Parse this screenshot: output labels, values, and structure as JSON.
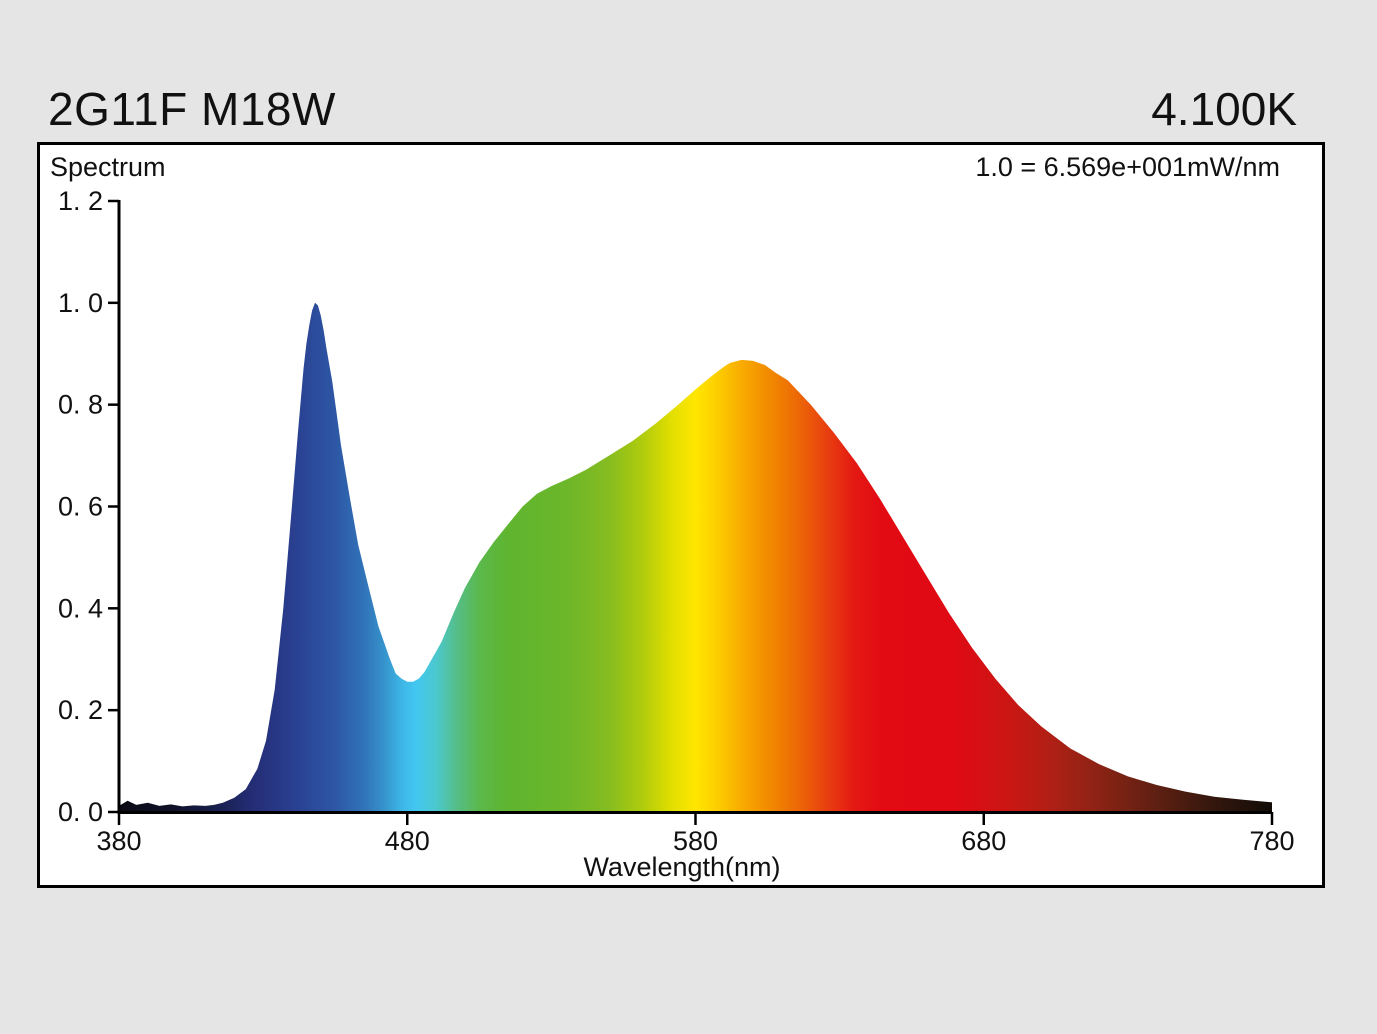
{
  "header": {
    "title_left": "2G11F M18W",
    "title_right": "4.100K"
  },
  "chart": {
    "label": "Spectrum",
    "scale_note": "1.0 = 6.569e+001mW/nm"
  },
  "colors": {
    "page_background": "#e5e5e5",
    "frame_background": "#ffffff",
    "frame_border": "#000000",
    "axis": "#000000",
    "text": "#111111"
  },
  "chart_data": {
    "type": "area",
    "title": "Spectrum",
    "subtitle": "1.0 = 6.569e+001mW/nm",
    "xlabel": "Wavelength(nm)",
    "ylabel": "",
    "xlim": [
      380,
      780
    ],
    "ylim": [
      0.0,
      1.2
    ],
    "grid": false,
    "legend": "none",
    "x_tick_values": [
      380,
      480,
      580,
      680,
      780
    ],
    "x_tick_labels": [
      "380",
      "480",
      "580",
      "680",
      "780"
    ],
    "y_tick_values": [
      0.0,
      0.2,
      0.4,
      0.6,
      0.8,
      1.0,
      1.2
    ],
    "y_tick_labels": [
      "0. 0",
      "0. 2",
      "0. 4",
      "0. 6",
      "0. 8",
      "1. 0",
      "1. 2"
    ],
    "fill_style": "wavelength-rainbow-gradient",
    "points": [
      [
        380,
        0.012
      ],
      [
        383,
        0.022
      ],
      [
        386,
        0.014
      ],
      [
        390,
        0.018
      ],
      [
        394,
        0.012
      ],
      [
        398,
        0.015
      ],
      [
        402,
        0.011
      ],
      [
        406,
        0.013
      ],
      [
        410,
        0.012
      ],
      [
        413,
        0.014
      ],
      [
        416,
        0.018
      ],
      [
        420,
        0.028
      ],
      [
        424,
        0.045
      ],
      [
        428,
        0.085
      ],
      [
        431,
        0.14
      ],
      [
        434,
        0.24
      ],
      [
        437,
        0.4
      ],
      [
        440,
        0.6
      ],
      [
        442,
        0.74
      ],
      [
        444,
        0.87
      ],
      [
        445,
        0.92
      ],
      [
        446,
        0.955
      ],
      [
        447,
        0.985
      ],
      [
        448,
        1.0
      ],
      [
        449,
        0.995
      ],
      [
        450,
        0.975
      ],
      [
        451,
        0.945
      ],
      [
        452,
        0.91
      ],
      [
        454,
        0.845
      ],
      [
        457,
        0.72
      ],
      [
        460,
        0.62
      ],
      [
        463,
        0.525
      ],
      [
        466,
        0.455
      ],
      [
        470,
        0.365
      ],
      [
        474,
        0.3
      ],
      [
        476,
        0.272
      ],
      [
        478,
        0.262
      ],
      [
        480,
        0.256
      ],
      [
        482,
        0.256
      ],
      [
        484,
        0.262
      ],
      [
        486,
        0.275
      ],
      [
        488,
        0.295
      ],
      [
        492,
        0.335
      ],
      [
        496,
        0.39
      ],
      [
        500,
        0.44
      ],
      [
        505,
        0.49
      ],
      [
        510,
        0.53
      ],
      [
        515,
        0.565
      ],
      [
        520,
        0.6
      ],
      [
        525,
        0.625
      ],
      [
        530,
        0.64
      ],
      [
        536,
        0.655
      ],
      [
        542,
        0.672
      ],
      [
        550,
        0.7
      ],
      [
        558,
        0.728
      ],
      [
        566,
        0.762
      ],
      [
        574,
        0.8
      ],
      [
        580,
        0.83
      ],
      [
        586,
        0.858
      ],
      [
        590,
        0.875
      ],
      [
        592,
        0.882
      ],
      [
        596,
        0.888
      ],
      [
        600,
        0.886
      ],
      [
        604,
        0.878
      ],
      [
        608,
        0.862
      ],
      [
        612,
        0.848
      ],
      [
        620,
        0.8
      ],
      [
        628,
        0.745
      ],
      [
        636,
        0.685
      ],
      [
        644,
        0.615
      ],
      [
        652,
        0.54
      ],
      [
        660,
        0.465
      ],
      [
        668,
        0.39
      ],
      [
        676,
        0.322
      ],
      [
        684,
        0.262
      ],
      [
        692,
        0.21
      ],
      [
        700,
        0.168
      ],
      [
        710,
        0.125
      ],
      [
        720,
        0.094
      ],
      [
        730,
        0.07
      ],
      [
        740,
        0.053
      ],
      [
        750,
        0.04
      ],
      [
        760,
        0.03
      ],
      [
        770,
        0.024
      ],
      [
        780,
        0.019
      ]
    ],
    "gradient_stops": [
      [
        380,
        "#0a0a14"
      ],
      [
        400,
        "#10122a"
      ],
      [
        415,
        "#1a2050"
      ],
      [
        425,
        "#232c72"
      ],
      [
        435,
        "#283786"
      ],
      [
        445,
        "#2b4697"
      ],
      [
        455,
        "#2d57a5"
      ],
      [
        465,
        "#3173b8"
      ],
      [
        472,
        "#3693cc"
      ],
      [
        478,
        "#3db5e6"
      ],
      [
        483,
        "#42c7f0"
      ],
      [
        490,
        "#4bc8cf"
      ],
      [
        497,
        "#55be8a"
      ],
      [
        505,
        "#5bb84b"
      ],
      [
        515,
        "#5fb52f"
      ],
      [
        535,
        "#6cb62a"
      ],
      [
        550,
        "#86bc20"
      ],
      [
        562,
        "#b1cc0c"
      ],
      [
        572,
        "#e3df00"
      ],
      [
        580,
        "#ffe600"
      ],
      [
        588,
        "#fccc00"
      ],
      [
        596,
        "#f8ab00"
      ],
      [
        605,
        "#f28c00"
      ],
      [
        615,
        "#ed6a05"
      ],
      [
        625,
        "#e8420f"
      ],
      [
        635,
        "#e41913"
      ],
      [
        645,
        "#e20a13"
      ],
      [
        670,
        "#df0a14"
      ],
      [
        690,
        "#c91713"
      ],
      [
        705,
        "#ac2015"
      ],
      [
        720,
        "#8b2315"
      ],
      [
        740,
        "#5e2012"
      ],
      [
        760,
        "#33170d"
      ],
      [
        780,
        "#120c07"
      ]
    ]
  }
}
